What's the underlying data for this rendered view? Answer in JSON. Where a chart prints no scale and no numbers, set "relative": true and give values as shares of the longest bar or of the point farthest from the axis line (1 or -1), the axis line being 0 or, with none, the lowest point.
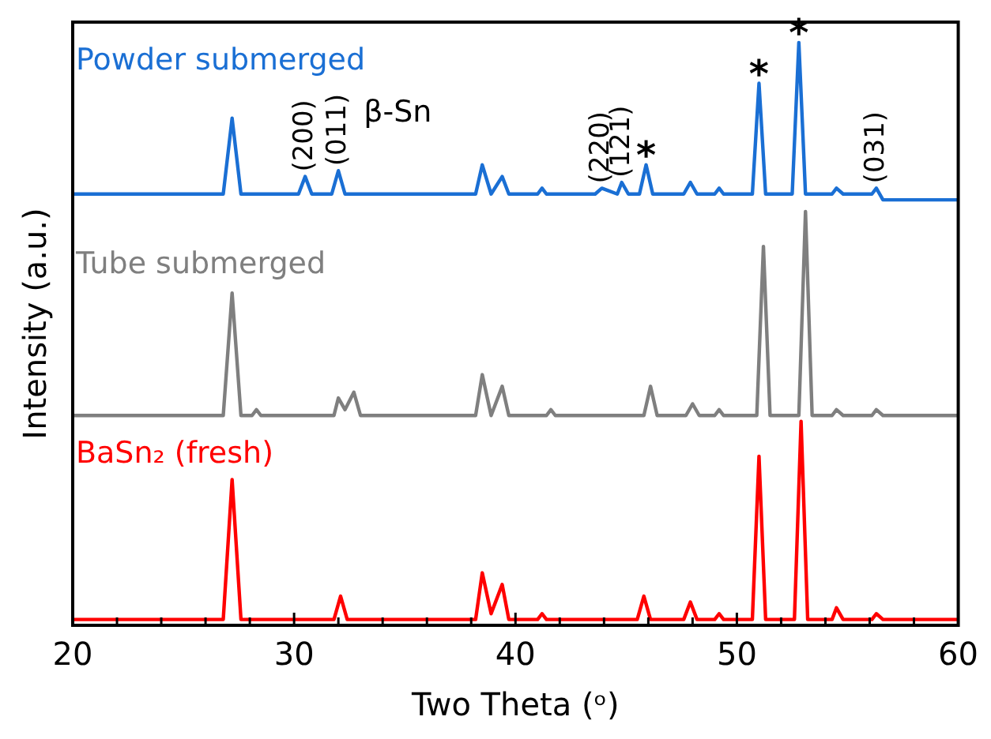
{
  "chart_data": {
    "type": "line",
    "relative": true,
    "xlabel": "Two Theta (ᵒ)",
    "ylabel": "Intensity (a.u.)",
    "legend": false,
    "xlim": [
      20,
      60
    ],
    "xticks": [
      20,
      {
        "value": 22,
        "label": null
      },
      {
        "value": 24,
        "label": null
      },
      {
        "value": 26,
        "label": null
      },
      {
        "value": 28,
        "label": null
      },
      30,
      {
        "value": 32,
        "label": null
      },
      {
        "value": 34,
        "label": null
      },
      {
        "value": 36,
        "label": null
      },
      {
        "value": 38,
        "label": null
      },
      40,
      {
        "value": 42,
        "label": null
      },
      {
        "value": 44,
        "label": null
      },
      {
        "value": 46,
        "label": null
      },
      {
        "value": 48,
        "label": null
      },
      50,
      {
        "value": 52,
        "label": null
      },
      {
        "value": 54,
        "label": null
      },
      {
        "value": 56,
        "label": null
      },
      {
        "value": 58,
        "label": null
      },
      60
    ],
    "series": [
      {
        "name": "Powder submerged",
        "color": "#1a6fd4",
        "x": [
          20,
          26.8,
          27.2,
          27.6,
          30.2,
          30.5,
          30.8,
          31.7,
          32.0,
          32.3,
          38.2,
          38.5,
          38.9,
          39.4,
          39.7,
          41.0,
          41.2,
          41.4,
          43.6,
          43.9,
          44.6,
          44.8,
          45.1,
          45.6,
          45.9,
          46.2,
          47.6,
          47.9,
          48.2,
          49.0,
          49.2,
          49.4,
          50.7,
          51.0,
          51.3,
          52.5,
          52.8,
          53.1,
          54.3,
          54.5,
          54.8,
          56.1,
          56.3,
          56.6,
          60
        ],
        "values": [
          0.74,
          0.74,
          0.87,
          0.74,
          0.74,
          0.77,
          0.74,
          0.74,
          0.78,
          0.74,
          0.74,
          0.79,
          0.74,
          0.77,
          0.74,
          0.74,
          0.75,
          0.74,
          0.74,
          0.75,
          0.74,
          0.76,
          0.74,
          0.74,
          0.79,
          0.74,
          0.74,
          0.76,
          0.74,
          0.74,
          0.75,
          0.74,
          0.74,
          0.93,
          0.74,
          0.74,
          1,
          0.74,
          0.74,
          0.75,
          0.74,
          0.74,
          0.75,
          0.73,
          0.73
        ]
      },
      {
        "name": "Tube submerged",
        "color": "#7f7f7f",
        "x": [
          20,
          26.8,
          27.2,
          27.6,
          28.1,
          28.3,
          28.5,
          31.8,
          32.0,
          32.3,
          32.7,
          33.0,
          38.2,
          38.5,
          38.9,
          39.4,
          39.7,
          41.4,
          41.6,
          41.8,
          45.8,
          46.1,
          46.4,
          47.7,
          48.0,
          48.3,
          49.0,
          49.2,
          49.4,
          50.9,
          51.2,
          51.5,
          52.8,
          53.1,
          53.4,
          54.3,
          54.5,
          54.8,
          56.1,
          56.3,
          56.6,
          60
        ],
        "values": [
          0.36,
          0.36,
          0.57,
          0.36,
          0.36,
          0.37,
          0.36,
          0.36,
          0.39,
          0.37,
          0.4,
          0.36,
          0.36,
          0.43,
          0.36,
          0.41,
          0.36,
          0.36,
          0.37,
          0.36,
          0.36,
          0.41,
          0.36,
          0.36,
          0.38,
          0.36,
          0.36,
          0.37,
          0.36,
          0.36,
          0.65,
          0.36,
          0.36,
          0.71,
          0.36,
          0.36,
          0.37,
          0.36,
          0.36,
          0.37,
          0.36,
          0.36
        ]
      },
      {
        "name": "BaSn₂ (fresh)",
        "color": "#ff0000",
        "x": [
          20,
          26.8,
          27.2,
          27.6,
          31.8,
          32.1,
          32.4,
          38.2,
          38.5,
          38.9,
          39.4,
          39.7,
          41.0,
          41.2,
          41.4,
          45.5,
          45.8,
          46.1,
          47.6,
          47.9,
          48.2,
          49.0,
          49.2,
          49.4,
          50.7,
          51.0,
          51.3,
          52.6,
          52.9,
          53.2,
          54.3,
          54.5,
          54.8,
          56.1,
          56.3,
          56.6,
          60
        ],
        "values": [
          0.01,
          0.01,
          0.25,
          0.01,
          0.01,
          0.05,
          0.01,
          0.01,
          0.09,
          0.02,
          0.07,
          0.01,
          0.01,
          0.02,
          0.01,
          0.01,
          0.05,
          0.01,
          0.01,
          0.04,
          0.01,
          0.01,
          0.02,
          0.01,
          0.01,
          0.29,
          0.01,
          0.01,
          0.35,
          0.01,
          0.01,
          0.03,
          0.01,
          0.01,
          0.02,
          0.01,
          0.01
        ]
      }
    ],
    "annotations": [
      {
        "text": "(200)",
        "x": 30.5,
        "y": 0.77
      },
      {
        "text": "(011)",
        "x": 32.0,
        "y": 0.78
      },
      "β-Sn",
      {
        "text": "(220)",
        "x": 43.9,
        "y": 0.75
      },
      {
        "text": "(121)",
        "x": 44.8,
        "y": 0.76
      },
      {
        "text": "*",
        "x": 45.9,
        "y": 0.79
      },
      {
        "text": "*",
        "x": 51.0,
        "y": 0.93
      },
      {
        "text": "*",
        "x": 52.8,
        "y": 1
      },
      {
        "text": "(031)",
        "x": 56.3,
        "y": 0.75
      }
    ]
  }
}
